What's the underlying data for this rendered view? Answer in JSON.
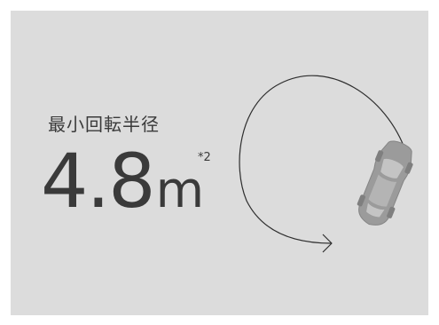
{
  "spec": {
    "label": "最小回転半径",
    "value": "4.8",
    "unit": "m",
    "footnote": "*2"
  },
  "colors": {
    "panel_bg": "#dcdcdc",
    "text": "#3a3a3a",
    "car": "#9b9b9b",
    "car_glass": "#c9c9c9",
    "arc": "#2e2e2e"
  },
  "icons": {
    "car": "car-top-view-icon",
    "arc": "turning-radius-arc-icon"
  }
}
